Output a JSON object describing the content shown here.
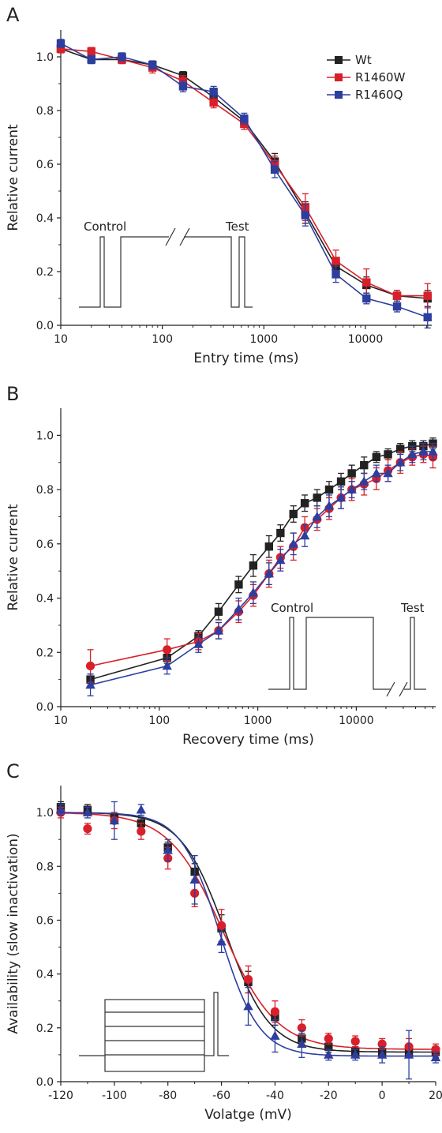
{
  "colors": {
    "wt": "#222222",
    "r1460w": "#d8202a",
    "r1460q": "#2d3e9e",
    "axis": "#222222",
    "protocol": "#333333"
  },
  "chart_data": [
    {
      "panel_label": "A",
      "type": "line",
      "xlabel": "Entry time (ms)",
      "ylabel": "Relative current",
      "xscale": "log",
      "xlim": [
        10,
        45000
      ],
      "ylim": [
        0,
        1.1
      ],
      "x_ticks": [
        10,
        100,
        1000,
        10000
      ],
      "x_tick_labels": [
        "10",
        "100",
        "1000",
        "10000"
      ],
      "y_ticks": [
        0.0,
        0.2,
        0.4,
        0.6,
        0.8,
        1.0
      ],
      "y_tick_labels": [
        "0.0",
        "0.2",
        "0.4",
        "0.6",
        "0.8",
        "1.0"
      ],
      "legend": {
        "placement": "top-right",
        "entries": [
          "Wt",
          "R1460W",
          "R1460Q"
        ]
      },
      "protocol_labels": [
        "Control",
        "Test"
      ],
      "x": [
        10,
        20,
        40,
        80,
        160,
        320,
        640,
        1280,
        2560,
        5120,
        10240,
        20480,
        40960
      ],
      "series": [
        {
          "name": "Wt",
          "marker": "square",
          "values": [
            1.03,
            0.99,
            0.99,
            0.97,
            0.93,
            0.85,
            0.76,
            0.61,
            0.42,
            0.22,
            0.15,
            0.11,
            0.1
          ],
          "errors": [
            0.015,
            0.015,
            0.015,
            0.015,
            0.015,
            0.02,
            0.02,
            0.03,
            0.04,
            0.03,
            0.03,
            0.02,
            0.03
          ]
        },
        {
          "name": "R1460W",
          "marker": "square",
          "values": [
            1.03,
            1.02,
            0.99,
            0.96,
            0.91,
            0.83,
            0.75,
            0.6,
            0.44,
            0.24,
            0.16,
            0.11,
            0.11
          ],
          "errors": [
            0.015,
            0.015,
            0.015,
            0.02,
            0.02,
            0.02,
            0.02,
            0.03,
            0.05,
            0.04,
            0.05,
            0.02,
            0.045
          ]
        },
        {
          "name": "R1460Q",
          "marker": "square",
          "values": [
            1.05,
            0.99,
            1.0,
            0.97,
            0.89,
            0.87,
            0.77,
            0.58,
            0.41,
            0.19,
            0.1,
            0.07,
            0.03
          ],
          "errors": [
            0.015,
            0.015,
            0.015,
            0.015,
            0.02,
            0.02,
            0.02,
            0.03,
            0.04,
            0.03,
            0.02,
            0.02,
            0.04
          ]
        }
      ]
    },
    {
      "panel_label": "B",
      "type": "line",
      "xlabel": "Recovery time (ms)",
      "ylabel": "Relative current",
      "xscale": "log",
      "xlim": [
        10,
        64000
      ],
      "ylim": [
        0,
        1.1
      ],
      "x_ticks": [
        10,
        100,
        1000,
        10000
      ],
      "x_tick_labels": [
        "10",
        "100",
        "1000",
        "10000"
      ],
      "y_ticks": [
        0.0,
        0.2,
        0.4,
        0.6,
        0.8,
        1.0
      ],
      "y_tick_labels": [
        "0.0",
        "0.2",
        "0.4",
        "0.6",
        "0.8",
        "1.0"
      ],
      "protocol_labels": [
        "Control",
        "Test"
      ],
      "x": [
        20,
        120,
        250,
        400,
        640,
        900,
        1300,
        1700,
        2300,
        3000,
        4000,
        5300,
        7000,
        9000,
        12000,
        16000,
        21000,
        28000,
        37000,
        48000,
        60000
      ],
      "series": [
        {
          "name": "Wt",
          "marker": "square",
          "values": [
            0.1,
            0.18,
            0.26,
            0.35,
            0.45,
            0.52,
            0.59,
            0.64,
            0.71,
            0.75,
            0.77,
            0.8,
            0.83,
            0.86,
            0.89,
            0.92,
            0.93,
            0.95,
            0.96,
            0.96,
            0.97
          ],
          "errors": [
            0.02,
            0.02,
            0.02,
            0.03,
            0.03,
            0.04,
            0.04,
            0.03,
            0.03,
            0.03,
            0.03,
            0.03,
            0.03,
            0.03,
            0.03,
            0.02,
            0.02,
            0.02,
            0.02,
            0.02,
            0.02
          ]
        },
        {
          "name": "R1460W",
          "marker": "circle",
          "values": [
            0.15,
            0.21,
            0.24,
            0.28,
            0.35,
            0.41,
            0.49,
            0.55,
            0.59,
            0.66,
            0.69,
            0.73,
            0.77,
            0.8,
            0.82,
            0.84,
            0.87,
            0.9,
            0.92,
            0.93,
            0.92
          ],
          "errors": [
            0.06,
            0.04,
            0.03,
            0.03,
            0.04,
            0.04,
            0.05,
            0.04,
            0.05,
            0.04,
            0.04,
            0.04,
            0.04,
            0.04,
            0.04,
            0.04,
            0.04,
            0.04,
            0.03,
            0.03,
            0.04
          ]
        },
        {
          "name": "R1460Q",
          "marker": "triangle",
          "values": [
            0.08,
            0.15,
            0.23,
            0.28,
            0.36,
            0.42,
            0.49,
            0.54,
            0.6,
            0.63,
            0.7,
            0.74,
            0.77,
            0.8,
            0.83,
            0.86,
            0.86,
            0.9,
            0.93,
            0.94,
            0.94
          ],
          "errors": [
            0.04,
            0.03,
            0.03,
            0.03,
            0.04,
            0.04,
            0.04,
            0.04,
            0.04,
            0.04,
            0.04,
            0.04,
            0.04,
            0.03,
            0.03,
            0.03,
            0.03,
            0.03,
            0.03,
            0.03,
            0.03
          ]
        }
      ]
    },
    {
      "panel_label": "C",
      "type": "scatter",
      "xlabel": "Volatge (mV)",
      "ylabel": "Availability (slow inactivation)",
      "xscale": "linear",
      "xlim": [
        -120,
        20
      ],
      "ylim": [
        0,
        1.1
      ],
      "x_ticks": [
        -120,
        -100,
        -80,
        -60,
        -40,
        -20,
        0,
        20
      ],
      "x_tick_labels": [
        "-120",
        "-100",
        "-80",
        "-60",
        "-40",
        "-20",
        "0",
        "20"
      ],
      "y_ticks": [
        0.0,
        0.2,
        0.4,
        0.6,
        0.8,
        1.0
      ],
      "y_tick_labels": [
        "0.0",
        "0.2",
        "0.4",
        "0.6",
        "0.8",
        "1.0"
      ],
      "x": [
        -120,
        -110,
        -100,
        -90,
        -80,
        -70,
        -60,
        -50,
        -40,
        -30,
        -20,
        -10,
        0,
        10,
        20
      ],
      "series": [
        {
          "name": "Wt",
          "marker": "square",
          "values": [
            1.02,
            1.01,
            0.98,
            0.96,
            0.87,
            0.78,
            0.57,
            0.37,
            0.24,
            0.16,
            0.13,
            0.11,
            0.11,
            0.11,
            0.11
          ],
          "errors": [
            0.02,
            0.02,
            0.02,
            0.02,
            0.02,
            0.03,
            0.05,
            0.04,
            0.03,
            0.02,
            0.02,
            0.02,
            0.02,
            0.02,
            0.02
          ],
          "fit": {
            "v_half": -58.5,
            "k": 8.3,
            "bottom": 0.11
          }
        },
        {
          "name": "R1460W",
          "marker": "circle",
          "values": [
            1.0,
            0.94,
            0.97,
            0.93,
            0.83,
            0.7,
            0.58,
            0.38,
            0.26,
            0.2,
            0.16,
            0.15,
            0.14,
            0.13,
            0.12
          ],
          "errors": [
            0.02,
            0.02,
            0.03,
            0.03,
            0.04,
            0.05,
            0.06,
            0.05,
            0.04,
            0.03,
            0.02,
            0.02,
            0.02,
            0.03,
            0.02
          ],
          "fit": {
            "v_half": -59.5,
            "k": 10.0,
            "bottom": 0.12
          }
        },
        {
          "name": "R1460Q",
          "marker": "triangle",
          "values": [
            1.01,
            1.0,
            0.97,
            1.01,
            0.86,
            0.75,
            0.52,
            0.28,
            0.17,
            0.14,
            0.1,
            0.1,
            0.1,
            0.1,
            0.09
          ],
          "errors": [
            0.02,
            0.02,
            0.07,
            0.02,
            0.04,
            0.09,
            0.04,
            0.07,
            0.06,
            0.05,
            0.02,
            0.02,
            0.03,
            0.09,
            0.02
          ],
          "fit": {
            "v_half": -60.5,
            "k": 7.3,
            "bottom": 0.095
          }
        }
      ]
    }
  ]
}
